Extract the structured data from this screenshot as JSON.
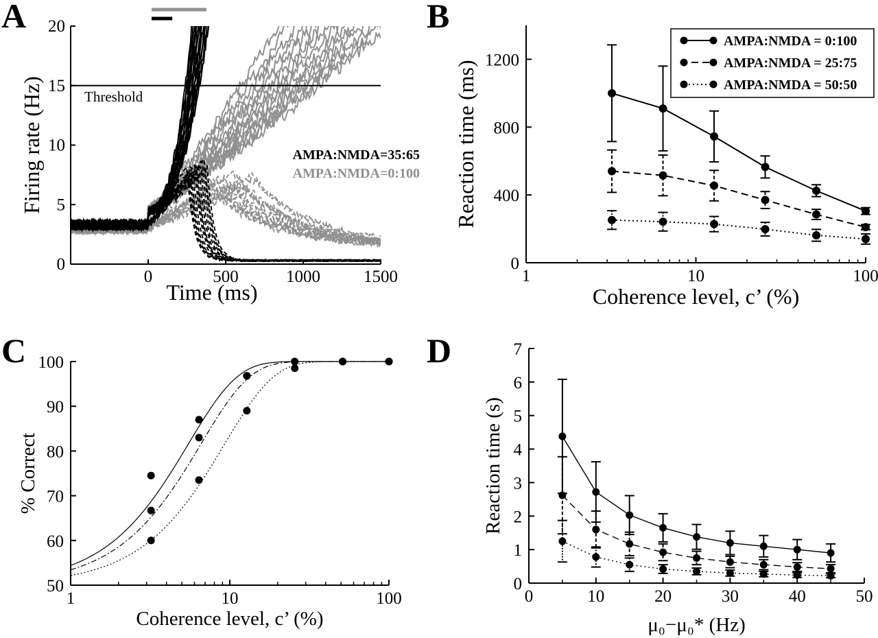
{
  "figure": {
    "panels": [
      "A",
      "B",
      "C",
      "D"
    ]
  },
  "chart_data": [
    {
      "id": "A",
      "type": "line",
      "xlabel": "Time (ms)",
      "ylabel": "Firing rate (Hz)",
      "xlim": [
        -500,
        1500
      ],
      "ylim": [
        0,
        20
      ],
      "xticks": [
        "0",
        "500",
        "1000",
        "1500"
      ],
      "yticks": [
        "0",
        "5",
        "10",
        "15",
        "20"
      ],
      "threshold": {
        "value": 15,
        "label": "Threshold"
      },
      "annotations": [
        {
          "text": "AMPA:NMDA=35:65",
          "color": "#000000"
        },
        {
          "text": "AMPA:NMDA=0:100",
          "color": "#909090"
        }
      ],
      "top_bars": [
        {
          "series": "AMPA:NMDA=35:65",
          "x_start": 0,
          "x_end": 200,
          "color": "#000000"
        },
        {
          "series": "AMPA:NMDA=0:100",
          "x_start": 0,
          "x_end": 420,
          "color": "#909090"
        }
      ],
      "series": [
        {
          "name": "AMPA:NMDA=35:65",
          "color": "#000000",
          "baseline": 3.3,
          "onset": 0,
          "winner_crossing_ms": [
            240,
            330
          ],
          "loser_peak_ms": [
            250,
            380
          ],
          "loser_peak_hz": [
            7,
            9
          ],
          "loser_decay_to": 0.3,
          "n_trials": 14
        },
        {
          "name": "AMPA:NMDA=0:100",
          "color": "#909090",
          "baseline": 3.0,
          "onset": 0,
          "winner_crossing_ms": [
            600,
            1100
          ],
          "loser_peak_ms": [
            300,
            700
          ],
          "loser_peak_hz": [
            6,
            8
          ],
          "loser_decay_to": 1.5,
          "n_trials": 14
        }
      ]
    },
    {
      "id": "B",
      "type": "line",
      "xlabel": "Coherence level, c’ (%)",
      "ylabel": "Reaction time (ms)",
      "xscale": "log",
      "xlim": [
        1,
        100
      ],
      "ylim": [
        0,
        1400
      ],
      "xticks": [
        "1",
        "10",
        "100"
      ],
      "yticks": [
        "0",
        "400",
        "800",
        "1200"
      ],
      "legend": "top-right",
      "x": [
        3.2,
        6.4,
        12.8,
        25.6,
        51.2,
        100
      ],
      "series": [
        {
          "name": "AMPA:NMDA = 0:100",
          "style": "solid",
          "values": [
            1000,
            910,
            745,
            565,
            425,
            305
          ],
          "errors": [
            285,
            250,
            150,
            65,
            35,
            20
          ]
        },
        {
          "name": "AMPA:NMDA = 25:75",
          "style": "dashed",
          "values": [
            540,
            515,
            455,
            370,
            285,
            210
          ],
          "errors": [
            125,
            120,
            90,
            50,
            30,
            15
          ]
        },
        {
          "name": "AMPA:NMDA = 50:50",
          "style": "dotted",
          "values": [
            252,
            242,
            228,
            198,
            162,
            140
          ],
          "errors": [
            55,
            55,
            45,
            40,
            35,
            30
          ]
        }
      ]
    },
    {
      "id": "C",
      "type": "scatter",
      "xlabel": "Coherence level, c’ (%)",
      "ylabel": "% Correct",
      "xscale": "log",
      "xlim": [
        1,
        100
      ],
      "ylim": [
        50,
        100
      ],
      "xticks": [
        "1",
        "10",
        "100"
      ],
      "yticks": [
        "50",
        "60",
        "70",
        "80",
        "90",
        "100"
      ],
      "x": [
        3.2,
        6.4,
        12.8,
        25.6,
        51.2,
        100
      ],
      "series": [
        {
          "style": "solid",
          "values": [
            74.5,
            87,
            96.8,
            100,
            100,
            100
          ],
          "weibull_alpha": 5.5
        },
        {
          "style": "dashed",
          "values": [
            66.7,
            83,
            96.8,
            100,
            100,
            100
          ],
          "weibull_alpha": 6.6
        },
        {
          "style": "dotted",
          "values": [
            60,
            73.5,
            89,
            98.5,
            100,
            100
          ],
          "weibull_alpha": 9.3
        }
      ]
    },
    {
      "id": "D",
      "type": "line",
      "xlabel": "μ₀−μ₀* (Hz)",
      "ylabel": "Reaction time (s)",
      "xlim": [
        0,
        50
      ],
      "ylim": [
        0,
        7
      ],
      "xticks": [
        "0",
        "10",
        "20",
        "30",
        "40",
        "50"
      ],
      "yticks": [
        "0",
        "1",
        "2",
        "3",
        "4",
        "5",
        "6",
        "7"
      ],
      "x": [
        5,
        10,
        15,
        20,
        25,
        30,
        35,
        40,
        45
      ],
      "series": [
        {
          "style": "solid",
          "values": [
            4.38,
            2.72,
            2.03,
            1.65,
            1.38,
            1.2,
            1.1,
            1.0,
            0.9
          ],
          "errors": [
            1.7,
            0.9,
            0.58,
            0.42,
            0.37,
            0.35,
            0.32,
            0.3,
            0.27
          ]
        },
        {
          "style": "dashed",
          "values": [
            2.62,
            1.6,
            1.17,
            0.92,
            0.75,
            0.63,
            0.55,
            0.48,
            0.43
          ],
          "errors": [
            1.15,
            0.55,
            0.35,
            0.25,
            0.2,
            0.17,
            0.15,
            0.13,
            0.12
          ]
        },
        {
          "style": "dotted",
          "values": [
            1.25,
            0.78,
            0.55,
            0.42,
            0.35,
            0.3,
            0.27,
            0.24,
            0.22
          ],
          "errors": [
            0.62,
            0.3,
            0.2,
            0.13,
            0.1,
            0.09,
            0.08,
            0.07,
            0.06
          ]
        }
      ]
    }
  ]
}
